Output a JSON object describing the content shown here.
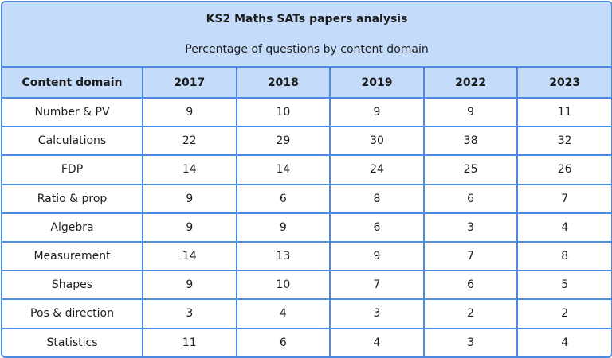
{
  "title": "KS2 Maths SATs papers analysis",
  "subtitle": "Percentage of questions by content domain",
  "chart_data": {
    "type": "table",
    "title": "KS2 Maths SATs papers analysis",
    "subtitle": "Percentage of questions by content domain",
    "columns": [
      "Content domain",
      "2017",
      "2018",
      "2019",
      "2022",
      "2023"
    ],
    "rows": [
      {
        "label": "Number & PV",
        "values": [
          9,
          10,
          9,
          9,
          11
        ]
      },
      {
        "label": "Calculations",
        "values": [
          22,
          29,
          30,
          38,
          32
        ]
      },
      {
        "label": "FDP",
        "values": [
          14,
          14,
          24,
          25,
          26
        ]
      },
      {
        "label": "Ratio & prop",
        "values": [
          9,
          6,
          8,
          6,
          7
        ]
      },
      {
        "label": "Algebra",
        "values": [
          9,
          9,
          6,
          3,
          4
        ]
      },
      {
        "label": "Measurement",
        "values": [
          14,
          13,
          9,
          7,
          8
        ]
      },
      {
        "label": "Shapes",
        "values": [
          9,
          10,
          7,
          6,
          5
        ]
      },
      {
        "label": "Pos & direction",
        "values": [
          3,
          4,
          3,
          2,
          2
        ]
      },
      {
        "label": "Statistics",
        "values": [
          11,
          6,
          4,
          3,
          4
        ]
      }
    ]
  },
  "colors": {
    "header_bg": "#c4dcfa",
    "border": "#4a8ae0"
  }
}
